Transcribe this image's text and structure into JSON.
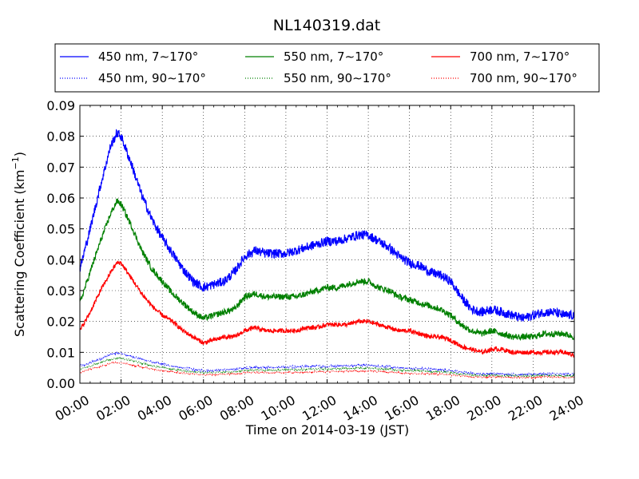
{
  "chart_data": {
    "type": "line",
    "title": "NL140319.dat",
    "xlabel": "Time on 2014-03-19 (JST)",
    "ylabel": "Scattering Coefficient (km",
    "ylabel_sup": "−1",
    "ylabel_close": ")",
    "xlim": [
      "00:00",
      "24:00"
    ],
    "ylim": [
      0,
      0.09
    ],
    "grid": true,
    "legend_position": "top",
    "x_ticks": [
      "00:00",
      "02:00",
      "04:00",
      "06:00",
      "08:00",
      "10:00",
      "12:00",
      "14:00",
      "16:00",
      "18:00",
      "20:00",
      "22:00",
      "24:00"
    ],
    "y_ticks": [
      "0.00",
      "0.01",
      "0.02",
      "0.03",
      "0.04",
      "0.05",
      "0.06",
      "0.07",
      "0.08",
      "0.09"
    ],
    "x_hours": [
      0.0,
      0.5,
      1.0,
      1.5,
      1.8,
      2.0,
      2.5,
      3.0,
      3.5,
      4.0,
      4.5,
      5.0,
      5.5,
      6.0,
      6.5,
      7.0,
      7.5,
      8.0,
      8.5,
      9.0,
      9.5,
      10.0,
      10.5,
      11.0,
      11.5,
      12.0,
      12.5,
      13.0,
      13.5,
      14.0,
      14.5,
      15.0,
      15.5,
      16.0,
      16.5,
      17.0,
      17.5,
      18.0,
      18.5,
      19.0,
      19.5,
      20.0,
      20.5,
      21.0,
      21.5,
      22.0,
      22.5,
      23.0,
      23.5,
      24.0
    ],
    "series": [
      {
        "name": "450 nm, 7∼170°",
        "color": "#0000ff",
        "style": "solid",
        "noise": 0.0015,
        "values": [
          0.037,
          0.05,
          0.064,
          0.077,
          0.081,
          0.08,
          0.071,
          0.061,
          0.053,
          0.047,
          0.042,
          0.037,
          0.033,
          0.031,
          0.032,
          0.033,
          0.036,
          0.041,
          0.043,
          0.042,
          0.042,
          0.042,
          0.043,
          0.044,
          0.045,
          0.046,
          0.046,
          0.047,
          0.048,
          0.048,
          0.046,
          0.044,
          0.041,
          0.039,
          0.038,
          0.036,
          0.035,
          0.033,
          0.028,
          0.024,
          0.023,
          0.024,
          0.023,
          0.022,
          0.021,
          0.022,
          0.023,
          0.023,
          0.022,
          0.022
        ]
      },
      {
        "name": "550 nm, 7∼170°",
        "color": "#008000",
        "style": "solid",
        "noise": 0.001,
        "values": [
          0.026,
          0.036,
          0.046,
          0.055,
          0.059,
          0.058,
          0.051,
          0.043,
          0.037,
          0.033,
          0.029,
          0.026,
          0.023,
          0.021,
          0.022,
          0.023,
          0.024,
          0.028,
          0.029,
          0.028,
          0.028,
          0.028,
          0.028,
          0.029,
          0.03,
          0.031,
          0.031,
          0.032,
          0.033,
          0.033,
          0.031,
          0.03,
          0.028,
          0.027,
          0.026,
          0.025,
          0.024,
          0.022,
          0.019,
          0.017,
          0.016,
          0.017,
          0.016,
          0.015,
          0.015,
          0.015,
          0.016,
          0.016,
          0.016,
          0.015
        ]
      },
      {
        "name": "700 nm, 7∼170°",
        "color": "#ff0000",
        "style": "solid",
        "noise": 0.0007,
        "values": [
          0.017,
          0.023,
          0.03,
          0.036,
          0.039,
          0.039,
          0.034,
          0.029,
          0.025,
          0.022,
          0.02,
          0.017,
          0.015,
          0.013,
          0.014,
          0.015,
          0.015,
          0.017,
          0.018,
          0.017,
          0.017,
          0.017,
          0.017,
          0.018,
          0.018,
          0.019,
          0.019,
          0.019,
          0.02,
          0.02,
          0.019,
          0.018,
          0.017,
          0.017,
          0.016,
          0.015,
          0.015,
          0.014,
          0.012,
          0.011,
          0.01,
          0.011,
          0.011,
          0.01,
          0.01,
          0.01,
          0.01,
          0.01,
          0.01,
          0.009
        ]
      },
      {
        "name": "450 nm, 90∼170°",
        "color": "#0000ff",
        "style": "dotted",
        "noise": 0.0004,
        "values": [
          0.0055,
          0.0065,
          0.008,
          0.0093,
          0.0097,
          0.0096,
          0.0088,
          0.0078,
          0.0068,
          0.0061,
          0.0055,
          0.0049,
          0.0044,
          0.0041,
          0.0042,
          0.0043,
          0.0045,
          0.005,
          0.0052,
          0.0051,
          0.0051,
          0.0052,
          0.0053,
          0.0054,
          0.0055,
          0.0055,
          0.0056,
          0.0057,
          0.0058,
          0.0058,
          0.0055,
          0.0053,
          0.005,
          0.0048,
          0.0047,
          0.0045,
          0.0044,
          0.0041,
          0.0036,
          0.0032,
          0.003,
          0.0031,
          0.003,
          0.0029,
          0.0028,
          0.0029,
          0.003,
          0.003,
          0.0029,
          0.0029
        ]
      },
      {
        "name": "550 nm, 90∼170°",
        "color": "#008000",
        "style": "dotted",
        "noise": 0.0003,
        "values": [
          0.0045,
          0.0055,
          0.0068,
          0.0078,
          0.0082,
          0.0081,
          0.0074,
          0.0065,
          0.0057,
          0.0051,
          0.0046,
          0.0041,
          0.0037,
          0.0034,
          0.0035,
          0.0036,
          0.0037,
          0.0042,
          0.0043,
          0.0042,
          0.0042,
          0.0043,
          0.0044,
          0.0045,
          0.0046,
          0.0046,
          0.0047,
          0.0048,
          0.0049,
          0.0049,
          0.0046,
          0.0045,
          0.0042,
          0.004,
          0.0039,
          0.0038,
          0.0037,
          0.0034,
          0.003,
          0.0027,
          0.0025,
          0.0026,
          0.0025,
          0.0024,
          0.0024,
          0.0024,
          0.0025,
          0.0025,
          0.0024,
          0.0024
        ]
      },
      {
        "name": "700 nm, 90∼170°",
        "color": "#ff0000",
        "style": "dotted",
        "noise": 0.00025,
        "values": [
          0.0035,
          0.0045,
          0.0055,
          0.0064,
          0.0067,
          0.0066,
          0.006,
          0.0053,
          0.0046,
          0.0041,
          0.0037,
          0.0033,
          0.003,
          0.0027,
          0.0028,
          0.0029,
          0.003,
          0.0034,
          0.0035,
          0.0034,
          0.0034,
          0.0035,
          0.0035,
          0.0036,
          0.0037,
          0.0037,
          0.0038,
          0.0039,
          0.004,
          0.004,
          0.0037,
          0.0036,
          0.0034,
          0.0032,
          0.0031,
          0.003,
          0.0029,
          0.0027,
          0.0024,
          0.0021,
          0.002,
          0.0021,
          0.002,
          0.0019,
          0.0019,
          0.0019,
          0.002,
          0.002,
          0.0019,
          0.0019
        ]
      }
    ]
  }
}
